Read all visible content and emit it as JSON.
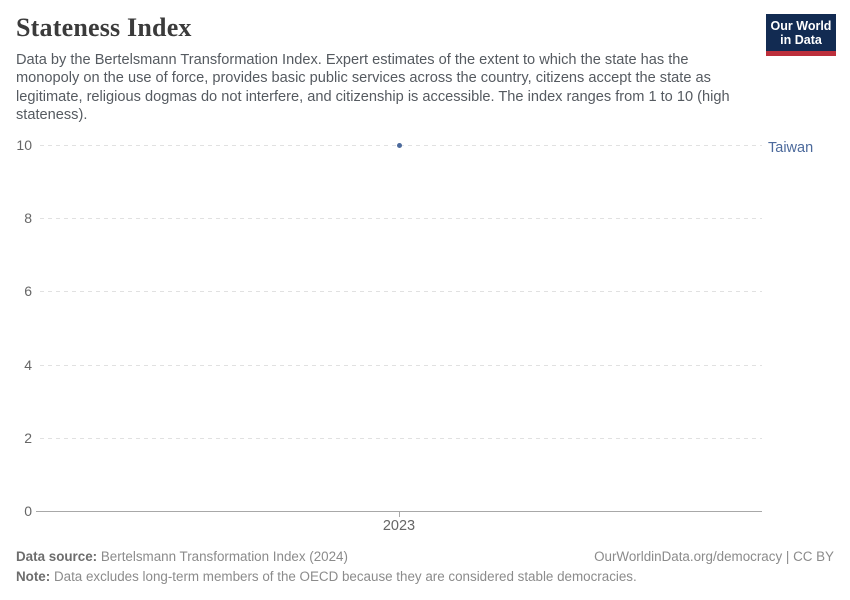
{
  "header": {
    "title": "Stateness Index",
    "subtitle": "Data by the Bertelsmann Transformation Index. Expert estimates of the extent to which the state has the monopoly on the use of force, provides basic public services across the country, citizens accept the state as legitimate, religious dogmas do not interfere, and citizenship is accessible. The index ranges from 1 to 10 (high stateness).",
    "logo": {
      "line1": "Our World",
      "line2": "in Data",
      "bg_color": "#122b52",
      "bar_color": "#bc2f3b"
    }
  },
  "chart_data": {
    "type": "scatter",
    "title": "Stateness Index",
    "series": [
      {
        "name": "Taiwan",
        "color": "#4c6a9c",
        "points": [
          {
            "x": 2023,
            "y": 10
          }
        ]
      }
    ],
    "categories": [
      2023
    ],
    "x_ticks": [
      2023
    ],
    "y_ticks": [
      0,
      2,
      4,
      6,
      8,
      10
    ],
    "xlim": [
      2022.5,
      2023.5
    ],
    "ylim": [
      0,
      10
    ],
    "xlabel": "",
    "ylabel": "",
    "grid": "horizontal-dashed",
    "legend_position": "right-entity-label",
    "grid_color": "#e1e1e1",
    "axis_color": "#a8a8a8",
    "tick_label_color": "#666666"
  },
  "footer": {
    "data_source_label": "Data source:",
    "data_source_value": "Bertelsmann Transformation Index (2024)",
    "attribution": "OurWorldinData.org/democracy | CC BY",
    "note_label": "Note:",
    "note_value": "Data excludes long-term members of the OECD because they are considered stable democracies."
  }
}
